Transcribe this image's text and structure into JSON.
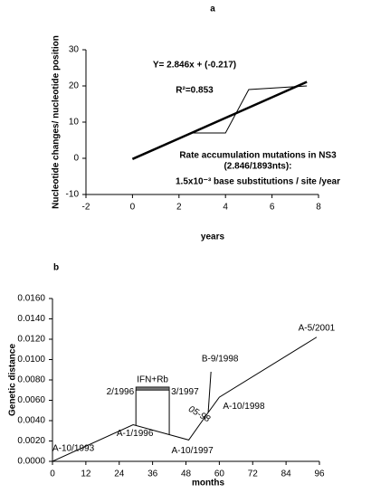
{
  "chart_data": [
    {
      "type": "line",
      "panel": "a",
      "xlabel": "years",
      "ylabel": "Nucleotide changes/ nucleotide position",
      "xlim": [
        -2,
        8
      ],
      "xticks": [
        -2,
        0,
        2,
        4,
        6,
        8
      ],
      "ylim": [
        -10,
        30
      ],
      "yticks": [
        -10,
        0,
        10,
        20,
        30
      ],
      "grid": false,
      "series": [
        {
          "x": [
            0,
            2.5,
            4,
            5,
            7.5
          ],
          "values": [
            0,
            7,
            7,
            19,
            20
          ],
          "color": "#000000",
          "linewidth": 1
        },
        {
          "x": [
            0,
            7.5
          ],
          "values": [
            -0.217,
            21.128
          ],
          "color": "#000000",
          "linewidth": 2.5
        }
      ],
      "annotations": [
        "Y= 2.846x + (-0.217)",
        "R²=0.853",
        "Rate accumulation mutations in NS3",
        "(2.846/1893nts):",
        "1.5x10⁻³ base substitutions / site /year"
      ]
    },
    {
      "type": "line",
      "panel": "b",
      "xlabel": "months",
      "ylabel": "Genetic distance",
      "xlim": [
        0,
        96
      ],
      "xticks": [
        0,
        12,
        24,
        36,
        48,
        60,
        72,
        84,
        96
      ],
      "ylim": [
        0,
        0.016
      ],
      "yticks": [
        {
          "value": 0,
          "label": "0.0000"
        },
        {
          "value": 0.002,
          "label": "0.0020"
        },
        {
          "value": 0.004,
          "label": "0.0040"
        },
        {
          "value": 0.006,
          "label": "0.0060"
        },
        {
          "value": 0.008,
          "label": "0.0080"
        },
        {
          "value": 0.01,
          "label": "0.0100"
        },
        {
          "value": 0.012,
          "label": "0.0120"
        },
        {
          "value": 0.014,
          "label": "0.0140"
        },
        {
          "value": 0.016,
          "label": "0.0160"
        }
      ],
      "grid": false,
      "series": [
        {
          "x": [
            0,
            29,
            49,
            56,
            60,
            95
          ],
          "values": [
            0,
            0.0036,
            0.0021,
            0.0048,
            0.0063,
            0.0122
          ],
          "color": "#000000",
          "linewidth": 1,
          "point_labels": [
            "A-10/1993",
            "A-1/1996",
            "A-10/1997",
            null,
            "A-10/1998",
            "A-5/2001"
          ]
        },
        {
          "x": [
            56,
            57
          ],
          "values": [
            0.0048,
            0.0088
          ],
          "color": "#000000",
          "linewidth": 1,
          "point_labels": [
            "05-98",
            "B-9/1998"
          ]
        }
      ],
      "treatment": {
        "label": "IFN+Rb",
        "start_label": "2/1996",
        "end_label": "3/1997",
        "x": [
          30,
          42
        ],
        "y": [
          0.007,
          0.0073
        ]
      }
    }
  ]
}
